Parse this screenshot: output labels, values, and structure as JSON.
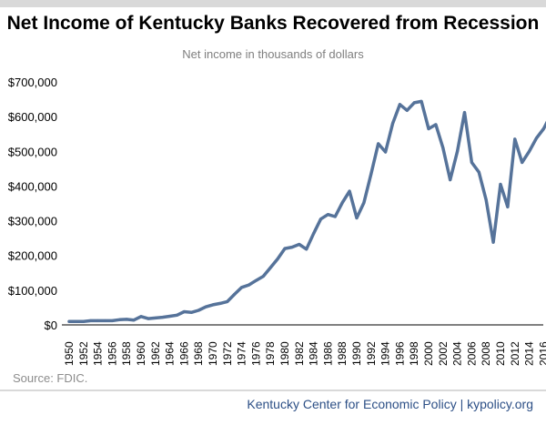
{
  "header": {
    "title": "Net Income of Kentucky Banks Recovered from Recession",
    "subtitle": "Net income in thousands of dollars"
  },
  "source": "Source: FDIC.",
  "footer": "Kentucky Center for Economic Policy | kypolicy.org",
  "colors": {
    "line": "#56739a",
    "axis": "#000000",
    "footer_text": "#2c4f86"
  },
  "chart_data": {
    "type": "line",
    "title": "Net Income of Kentucky Banks Recovered from Recession",
    "subtitle": "Net income in thousands of dollars",
    "xlabel": "",
    "ylabel": "",
    "ylim": [
      0,
      700000
    ],
    "yticks": [
      0,
      100000,
      200000,
      300000,
      400000,
      500000,
      600000,
      700000
    ],
    "ytick_labels": [
      "$0",
      "$100,000",
      "$200,000",
      "$300,000",
      "$400,000",
      "$500,000",
      "$600,000",
      "$700,000"
    ],
    "xticks": [
      1950,
      1952,
      1954,
      1956,
      1958,
      1960,
      1962,
      1964,
      1966,
      1968,
      1970,
      1972,
      1974,
      1976,
      1978,
      1980,
      1982,
      1984,
      1986,
      1988,
      1990,
      1992,
      1994,
      1996,
      1998,
      2000,
      2002,
      2004,
      2006,
      2008,
      2010,
      2012,
      2014,
      2016
    ],
    "grid": false,
    "legend": "none",
    "x": [
      1950,
      1951,
      1952,
      1953,
      1954,
      1955,
      1956,
      1957,
      1958,
      1959,
      1960,
      1961,
      1962,
      1963,
      1964,
      1965,
      1966,
      1967,
      1968,
      1969,
      1970,
      1971,
      1972,
      1973,
      1974,
      1975,
      1976,
      1977,
      1978,
      1979,
      1980,
      1981,
      1982,
      1983,
      1984,
      1985,
      1986,
      1987,
      1988,
      1989,
      1990,
      1991,
      1992,
      1993,
      1994,
      1995,
      1996,
      1997,
      1998,
      1999,
      2000,
      2001,
      2002,
      2003,
      2004,
      2005,
      2006,
      2007,
      2008,
      2009,
      2010,
      2011,
      2012,
      2013,
      2014,
      2015,
      2016,
      2017
    ],
    "values": [
      10000,
      10000,
      10000,
      12000,
      12000,
      12000,
      12000,
      15000,
      16000,
      14000,
      24000,
      18000,
      20000,
      22000,
      25000,
      28000,
      38000,
      36000,
      42000,
      52000,
      58000,
      62000,
      67000,
      88000,
      108000,
      115000,
      128000,
      140000,
      165000,
      190000,
      220000,
      224000,
      232000,
      218000,
      263000,
      305000,
      318000,
      312000,
      352000,
      385000,
      308000,
      352000,
      435000,
      522000,
      498000,
      580000,
      635000,
      618000,
      640000,
      644000,
      565000,
      577000,
      510000,
      418000,
      500000,
      612000,
      468000,
      440000,
      360000,
      238000,
      405000,
      340000,
      535000,
      468000,
      500000,
      538000,
      565000,
      605000
    ]
  }
}
